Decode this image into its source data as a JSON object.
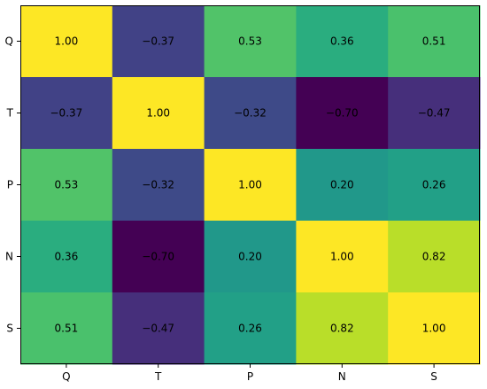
{
  "chart_data": {
    "type": "heatmap",
    "title": "",
    "xlabel": "",
    "ylabel": "",
    "colormap": "viridis",
    "value_range": [
      -0.7,
      1.0
    ],
    "x_categories": [
      "Q",
      "T",
      "P",
      "N",
      "S"
    ],
    "y_categories": [
      "Q",
      "T",
      "P",
      "N",
      "S"
    ],
    "values": [
      [
        1.0,
        -0.37,
        0.53,
        0.36,
        0.51
      ],
      [
        -0.37,
        1.0,
        -0.32,
        -0.7,
        -0.47
      ],
      [
        0.53,
        -0.32,
        1.0,
        0.2,
        0.26
      ],
      [
        0.36,
        -0.7,
        0.2,
        1.0,
        0.82
      ],
      [
        0.51,
        -0.47,
        0.26,
        0.82,
        1.0
      ]
    ],
    "cell_labels": [
      [
        "1.00",
        "−0.37",
        "0.53",
        "0.36",
        "0.51"
      ],
      [
        "−0.37",
        "1.00",
        "−0.32",
        "−0.70",
        "−0.47"
      ],
      [
        "0.53",
        "−0.32",
        "1.00",
        "0.20",
        "0.26"
      ],
      [
        "0.36",
        "−0.70",
        "0.20",
        "1.00",
        "0.82"
      ],
      [
        "0.51",
        "−0.47",
        "0.26",
        "0.82",
        "1.00"
      ]
    ],
    "grid": false,
    "legend": "none"
  }
}
